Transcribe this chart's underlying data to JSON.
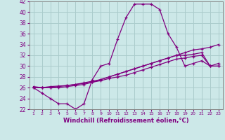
{
  "xlabel": "Windchill (Refroidissement éolien,°C)",
  "x_values": [
    1,
    2,
    3,
    4,
    5,
    6,
    7,
    8,
    9,
    10,
    11,
    12,
    13,
    14,
    15,
    16,
    17,
    18,
    19,
    20,
    21,
    22,
    23
  ],
  "line1": [
    26.0,
    25.0,
    24.0,
    23.0,
    23.0,
    22.0,
    23.0,
    27.5,
    30.0,
    30.5,
    35.0,
    39.0,
    41.5,
    41.5,
    41.5,
    40.5,
    36.0,
    33.5,
    30.0,
    30.5,
    31.0,
    30.0,
    30.5
  ],
  "line2": [
    26.2,
    26.0,
    26.0,
    26.0,
    26.2,
    26.4,
    26.6,
    27.0,
    27.5,
    28.0,
    28.5,
    29.0,
    29.5,
    30.0,
    30.5,
    31.0,
    31.5,
    32.0,
    32.5,
    33.0,
    33.2,
    33.5,
    34.0
  ],
  "line3": [
    26.0,
    26.0,
    26.2,
    26.3,
    26.4,
    26.6,
    26.9,
    27.2,
    27.5,
    28.0,
    28.5,
    29.0,
    29.5,
    30.0,
    30.5,
    31.0,
    31.5,
    32.0,
    32.0,
    32.2,
    32.5,
    30.0,
    30.0
  ],
  "line4": [
    26.0,
    26.0,
    26.0,
    26.2,
    26.4,
    26.6,
    26.8,
    27.0,
    27.3,
    27.7,
    28.0,
    28.3,
    28.8,
    29.3,
    29.8,
    30.3,
    30.8,
    31.3,
    31.5,
    31.8,
    32.0,
    30.0,
    30.0
  ],
  "ylim": [
    22,
    42
  ],
  "yticks": [
    22,
    24,
    26,
    28,
    30,
    32,
    34,
    36,
    38,
    40,
    42
  ],
  "bg_color": "#cce8e8",
  "line_color": "#800080",
  "grid_color": "#aacccc"
}
